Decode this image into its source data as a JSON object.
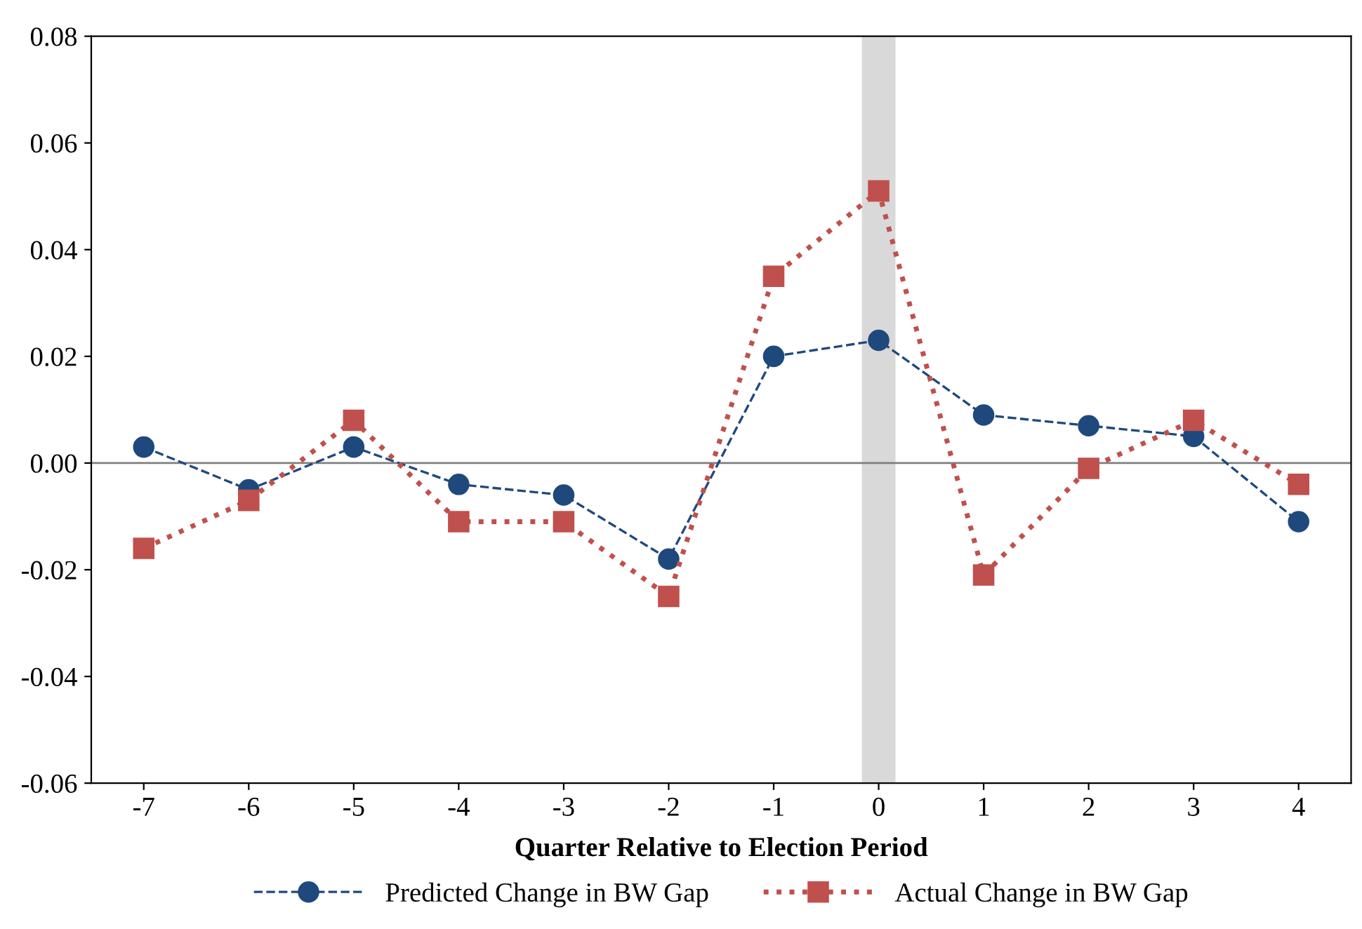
{
  "chart_data": {
    "type": "line",
    "xlabel": "Quarter Relative to Election Period",
    "x": [
      -7,
      -6,
      -5,
      -4,
      -3,
      -2,
      -1,
      0,
      1,
      2,
      3,
      4
    ],
    "xlim": [
      -7.5,
      4.5
    ],
    "xticks": [
      {
        "value": -7,
        "label": "-7"
      },
      {
        "value": -6,
        "label": "-6"
      },
      {
        "value": -5,
        "label": "-5"
      },
      {
        "value": -4,
        "label": "-4"
      },
      {
        "value": -3,
        "label": "-3"
      },
      {
        "value": -2,
        "label": "-2"
      },
      {
        "value": -1,
        "label": "-1"
      },
      0,
      1,
      2,
      3,
      4
    ],
    "ylim": [
      -0.06,
      0.08
    ],
    "yticks": [
      {
        "value": -0.06,
        "label": "-0.06"
      },
      {
        "value": -0.04,
        "label": "-0.04"
      },
      {
        "value": -0.02,
        "label": "-0.02"
      },
      {
        "value": 0,
        "label": "0.00"
      },
      {
        "value": 0.02,
        "label": "0.02"
      },
      {
        "value": 0.04,
        "label": "0.04"
      },
      {
        "value": 0.06,
        "label": "0.06"
      },
      {
        "value": 0.08,
        "label": "0.08"
      }
    ],
    "series": [
      {
        "name": "Predicted Change in BW Gap",
        "color": "#1f497d",
        "marker": "circle",
        "line_style": "dashed",
        "values": [
          0.003,
          -0.005,
          0.003,
          -0.004,
          -0.006,
          -0.018,
          0.02,
          0.023,
          0.009,
          0.007,
          0.005,
          -0.011
        ]
      },
      {
        "name": "Actual Change in BW Gap",
        "color": "#c0504d",
        "marker": "square",
        "line_style": "dotted",
        "values": [
          -0.016,
          -0.007,
          0.008,
          -0.011,
          -0.011,
          -0.025,
          0.035,
          0.051,
          -0.021,
          -0.001,
          0.008,
          -0.004
        ]
      }
    ],
    "ref_lines": [
      {
        "axis": "y",
        "value": 0,
        "color": "#808080"
      }
    ],
    "bands": [
      {
        "axis": "x",
        "from": -0.16,
        "to": 0.16,
        "color": "#d9d9d9"
      }
    ],
    "grid": false,
    "legend": "bottom"
  }
}
